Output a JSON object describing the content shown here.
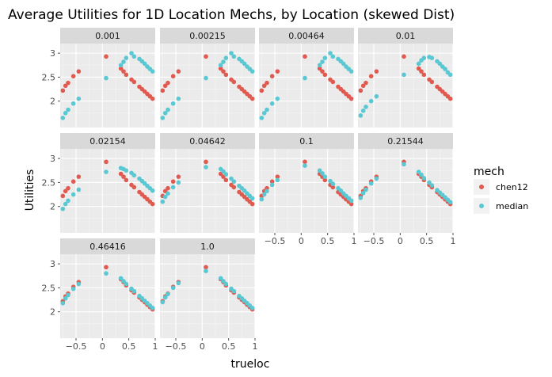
{
  "chart_data": {
    "type": "scatter",
    "title": "Average Utilities for 1D Location Mechs, by Location (skewed Dist)",
    "xlabel": "trueloc",
    "ylabel": "Utilities",
    "xlim": [
      -0.8,
      1.0
    ],
    "ylim": [
      1.45,
      3.2
    ],
    "x_ticks": [
      -0.5,
      0,
      0.5,
      1
    ],
    "x_tick_labels": [
      "−0.5",
      "0",
      "0.5",
      "1"
    ],
    "y_ticks": [
      2,
      2.5,
      3
    ],
    "y_tick_labels": [
      "2",
      "2.5",
      "3"
    ],
    "grid": true,
    "legend": {
      "title": "mech",
      "position": "right",
      "entries": [
        {
          "name": "chen12",
          "color": "#e05a4f"
        },
        {
          "name": "median",
          "color": "#5ac8d2"
        }
      ]
    },
    "x": [
      -0.75,
      -0.7,
      -0.65,
      -0.55,
      -0.45,
      0.07,
      0.35,
      0.4,
      0.45,
      0.55,
      0.6,
      0.7,
      0.75,
      0.8,
      0.85,
      0.9,
      0.95
    ],
    "chen12_values": [
      2.22,
      2.32,
      2.38,
      2.52,
      2.62,
      2.93,
      2.68,
      2.62,
      2.55,
      2.45,
      2.4,
      2.3,
      2.25,
      2.2,
      2.15,
      2.1,
      2.05
    ],
    "panels": [
      {
        "label": "0.001",
        "median": [
          1.65,
          1.75,
          1.82,
          1.95,
          2.05,
          2.48,
          2.75,
          2.82,
          2.9,
          3.0,
          2.93,
          2.88,
          2.83,
          2.78,
          2.72,
          2.67,
          2.62
        ]
      },
      {
        "label": "0.00215",
        "median": [
          1.65,
          1.75,
          1.82,
          1.95,
          2.05,
          2.48,
          2.75,
          2.82,
          2.9,
          3.0,
          2.93,
          2.88,
          2.83,
          2.78,
          2.72,
          2.67,
          2.62
        ]
      },
      {
        "label": "0.00464",
        "median": [
          1.65,
          1.75,
          1.82,
          1.95,
          2.05,
          2.48,
          2.75,
          2.82,
          2.9,
          3.0,
          2.93,
          2.88,
          2.83,
          2.78,
          2.72,
          2.67,
          2.62
        ]
      },
      {
        "label": "0.01",
        "median": [
          1.7,
          1.8,
          1.88,
          2.0,
          2.1,
          2.55,
          2.78,
          2.85,
          2.9,
          2.92,
          2.9,
          2.83,
          2.78,
          2.72,
          2.67,
          2.6,
          2.55
        ]
      },
      {
        "label": "0.02154",
        "median": [
          1.95,
          2.05,
          2.12,
          2.25,
          2.35,
          2.72,
          2.8,
          2.78,
          2.75,
          2.7,
          2.65,
          2.58,
          2.53,
          2.48,
          2.43,
          2.38,
          2.33
        ]
      },
      {
        "label": "0.04642",
        "median": [
          2.1,
          2.2,
          2.27,
          2.4,
          2.5,
          2.82,
          2.78,
          2.73,
          2.67,
          2.58,
          2.52,
          2.43,
          2.38,
          2.33,
          2.27,
          2.22,
          2.17
        ]
      },
      {
        "label": "0.1",
        "median": [
          2.15,
          2.25,
          2.32,
          2.45,
          2.55,
          2.85,
          2.75,
          2.69,
          2.62,
          2.53,
          2.47,
          2.38,
          2.33,
          2.27,
          2.22,
          2.17,
          2.12
        ]
      },
      {
        "label": "0.21544",
        "median": [
          2.18,
          2.28,
          2.35,
          2.48,
          2.58,
          2.88,
          2.72,
          2.66,
          2.59,
          2.5,
          2.44,
          2.34,
          2.29,
          2.24,
          2.19,
          2.14,
          2.09
        ]
      },
      {
        "label": "0.46416",
        "median": [
          2.18,
          2.28,
          2.35,
          2.48,
          2.58,
          2.8,
          2.7,
          2.64,
          2.58,
          2.48,
          2.43,
          2.33,
          2.28,
          2.23,
          2.18,
          2.13,
          2.08
        ]
      },
      {
        "label": "1.0",
        "median": [
          2.2,
          2.3,
          2.37,
          2.5,
          2.6,
          2.85,
          2.7,
          2.64,
          2.58,
          2.48,
          2.43,
          2.33,
          2.28,
          2.23,
          2.18,
          2.13,
          2.08
        ]
      }
    ]
  }
}
